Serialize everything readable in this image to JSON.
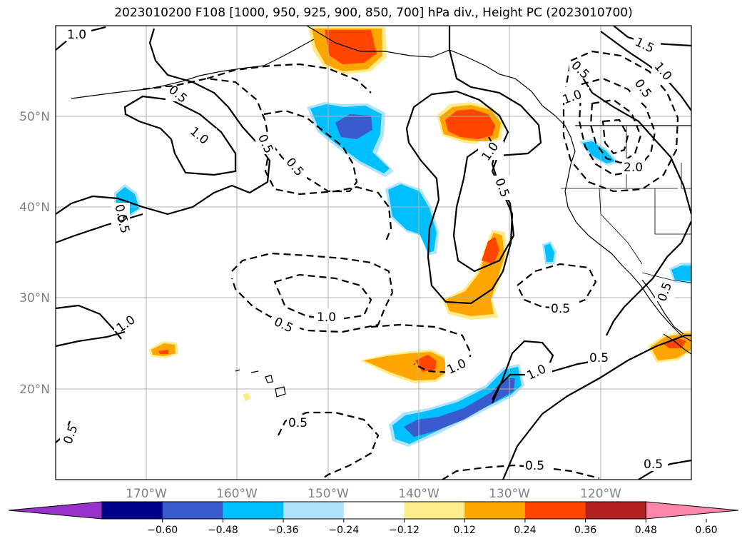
{
  "title": "2023010200 F108 [1000, 950, 925, 900, 850, 700] hPa div., Height PC (2023010700)",
  "latitude_labels": [
    "50°N",
    "40°N",
    "30°N",
    "20°N"
  ],
  "longitude_labels": [
    "170°W",
    "160°W",
    "150°W",
    "140°W",
    "130°W",
    "120°W"
  ],
  "contour_labels": [
    "1.0",
    "0.5",
    "1.0",
    "0.5",
    "1.0",
    "0.5",
    "0.5",
    "0.5",
    "1.0",
    "0.5",
    "1.0",
    "0.5",
    "0.5",
    "1.0",
    "1.0",
    "0.5",
    "0.5",
    "0.5",
    "0.5",
    "1.5",
    "1.0",
    "0.5",
    "0.5",
    "1.0",
    "2.0",
    "0.5",
    "0.5"
  ],
  "colorbar": {
    "ticks": [
      "−0.60",
      "−0.48",
      "−0.36",
      "−0.24",
      "−0.12",
      "0.12",
      "0.24",
      "0.36",
      "0.48",
      "0.60"
    ],
    "colors": [
      "#9932CC",
      "#00008B",
      "#3A5BCE",
      "#00BFFF",
      "#ADE3FA",
      "#FFFFFF",
      "#FFEB8A",
      "#FFA500",
      "#FF4500",
      "#B22222",
      "#FF88AA"
    ]
  },
  "shading_colors": {
    "light_blue": "#ADE3FA",
    "blue": "#00BFFF",
    "dark_blue": "#3A5BCE",
    "light_yellow": "#FFEB8A",
    "orange": "#FFA500",
    "red_orange": "#FF4500"
  }
}
